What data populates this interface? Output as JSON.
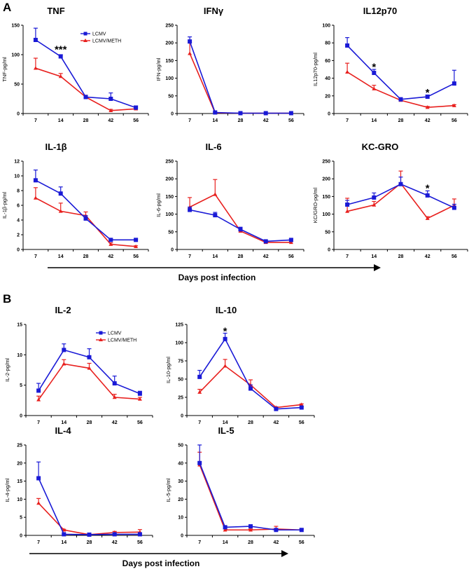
{
  "panel_labels": [
    "A",
    "B"
  ],
  "axis_captions": [
    "Days post infection",
    "Days post infection"
  ],
  "colors": {
    "lcmv": "#1a1ad6",
    "meth": "#e8201e",
    "axis": "#000000"
  },
  "series_names": [
    "LCMV",
    "LCMV/METH"
  ],
  "chart_data": [
    {
      "type": "line",
      "title": "TNF",
      "ylabel": "TNF-pg/ml",
      "ylim": [
        0,
        150
      ],
      "yticks": [
        0,
        50,
        100,
        150
      ],
      "categories": [
        "7",
        "14",
        "28",
        "42",
        "56"
      ],
      "series": [
        {
          "name": "LCMV",
          "values": [
            125,
            97,
            28,
            25,
            10
          ],
          "errors": [
            20,
            3,
            3,
            10,
            3
          ]
        },
        {
          "name": "LCMV/METH",
          "values": [
            77,
            63,
            28,
            5,
            8
          ],
          "errors": [
            17,
            5,
            3,
            2,
            2
          ]
        }
      ],
      "legend": true,
      "annotations": [
        {
          "text": "***",
          "category": "14",
          "value": 108
        }
      ]
    },
    {
      "type": "line",
      "title": "IFNγ",
      "ylabel": "IFN-pg/ml",
      "ylim": [
        0,
        250
      ],
      "yticks": [
        0,
        50,
        100,
        150,
        200,
        250
      ],
      "categories": [
        "7",
        "14",
        "28",
        "42",
        "56"
      ],
      "series": [
        {
          "name": "LCMV",
          "values": [
            204,
            3,
            1,
            1,
            1
          ],
          "errors": [
            13,
            1,
            0,
            0,
            0
          ]
        },
        {
          "name": "LCMV/METH",
          "values": [
            170,
            2,
            1,
            1,
            1
          ],
          "errors": [
            30,
            1,
            0,
            0,
            0
          ]
        }
      ],
      "legend": false,
      "annotations": []
    },
    {
      "type": "line",
      "title": "IL12p70",
      "ylabel": "IL12p70-pg/ml",
      "ylim": [
        0,
        100
      ],
      "yticks": [
        0,
        20,
        40,
        60,
        80,
        100
      ],
      "categories": [
        "7",
        "14",
        "28",
        "42",
        "56"
      ],
      "series": [
        {
          "name": "LCMV",
          "values": [
            77,
            46,
            16,
            19,
            34
          ],
          "errors": [
            9,
            4,
            2,
            2,
            15
          ]
        },
        {
          "name": "LCMV/METH",
          "values": [
            47,
            28,
            15,
            7,
            9
          ],
          "errors": [
            10,
            4,
            1,
            1,
            1
          ]
        }
      ],
      "legend": false,
      "annotations": [
        {
          "text": "*",
          "category": "14",
          "value": 52
        },
        {
          "text": "*",
          "category": "42",
          "value": 23
        }
      ]
    },
    {
      "type": "line",
      "title": "IL-1β",
      "ylabel": "IL-1β-pg/ml",
      "ylim": [
        0,
        12
      ],
      "yticks": [
        0,
        2,
        4,
        6,
        8,
        10,
        12
      ],
      "categories": [
        "7",
        "14",
        "28",
        "42",
        "56"
      ],
      "series": [
        {
          "name": "LCMV",
          "values": [
            9.4,
            7.6,
            4.2,
            1.3,
            1.3
          ],
          "errors": [
            1.4,
            0.9,
            0.4,
            0.1,
            0.1
          ]
        },
        {
          "name": "LCMV/METH",
          "values": [
            7.0,
            5.2,
            4.6,
            0.7,
            0.4
          ],
          "errors": [
            1.4,
            1.1,
            0.5,
            0.2,
            0.1
          ]
        }
      ],
      "legend": false,
      "annotations": []
    },
    {
      "type": "line",
      "title": "IL-6",
      "ylabel": "IL-6-pg/ml",
      "ylim": [
        0,
        250
      ],
      "yticks": [
        0,
        50,
        100,
        150,
        200,
        250
      ],
      "categories": [
        "7",
        "14",
        "28",
        "42",
        "56"
      ],
      "series": [
        {
          "name": "LCMV",
          "values": [
            112,
            97,
            57,
            23,
            27
          ],
          "errors": [
            8,
            8,
            6,
            2,
            3
          ]
        },
        {
          "name": "LCMV/METH",
          "values": [
            120,
            156,
            52,
            20,
            20
          ],
          "errors": [
            27,
            42,
            6,
            2,
            2
          ]
        }
      ],
      "legend": false,
      "annotations": []
    },
    {
      "type": "line",
      "title": "KC-GRO",
      "ylabel": "KC/GRO-pg/ml",
      "ylim": [
        0,
        250
      ],
      "yticks": [
        0,
        50,
        100,
        150,
        200,
        250
      ],
      "categories": [
        "7",
        "14",
        "28",
        "42",
        "56"
      ],
      "series": [
        {
          "name": "LCMV",
          "values": [
            127,
            147,
            185,
            153,
            118
          ],
          "errors": [
            12,
            13,
            20,
            13,
            10
          ]
        },
        {
          "name": "LCMV/METH",
          "values": [
            108,
            126,
            187,
            88,
            125
          ],
          "errors": [
            37,
            10,
            35,
            5,
            18
          ]
        }
      ],
      "legend": false,
      "annotations": [
        {
          "text": "*",
          "category": "42",
          "value": 172
        }
      ]
    },
    {
      "type": "line",
      "title": "IL-2",
      "ylabel": "IL-2-pg/ml",
      "ylim": [
        0,
        15
      ],
      "yticks": [
        0,
        5,
        10,
        15
      ],
      "categories": [
        "7",
        "14",
        "28",
        "42",
        "56"
      ],
      "series": [
        {
          "name": "LCMV",
          "values": [
            4.1,
            10.8,
            9.6,
            5.3,
            3.6
          ],
          "errors": [
            1.2,
            1.0,
            1.4,
            1.2,
            0.4
          ]
        },
        {
          "name": "LCMV/METH",
          "values": [
            2.6,
            8.5,
            7.8,
            3.0,
            2.7
          ],
          "errors": [
            0.6,
            0.7,
            0.8,
            0.5,
            0.3
          ]
        }
      ],
      "legend": true,
      "annotations": []
    },
    {
      "type": "line",
      "title": "IL-10",
      "ylabel": "IL-10-pg/ml",
      "ylim": [
        0,
        125
      ],
      "yticks": [
        0,
        25,
        50,
        75,
        100,
        125
      ],
      "categories": [
        "7",
        "14",
        "28",
        "42",
        "56"
      ],
      "series": [
        {
          "name": "LCMV",
          "values": [
            53,
            105,
            37,
            9,
            11
          ],
          "errors": [
            9,
            8,
            5,
            1,
            1
          ]
        },
        {
          "name": "LCMV/METH",
          "values": [
            32,
            68,
            42,
            11,
            15
          ],
          "errors": [
            4,
            9,
            7,
            1,
            1
          ]
        }
      ],
      "legend": false,
      "annotations": [
        {
          "text": "*",
          "category": "14",
          "value": 115
        }
      ]
    },
    {
      "type": "line",
      "title": "IL-4",
      "ylabel": "IL-4-pg/ml",
      "ylim": [
        0,
        25
      ],
      "yticks": [
        0,
        5,
        10,
        15,
        20,
        25
      ],
      "categories": [
        "7",
        "14",
        "28",
        "42",
        "56"
      ],
      "series": [
        {
          "name": "LCMV",
          "values": [
            15.8,
            0.3,
            0.2,
            0.3,
            0.3
          ],
          "errors": [
            4.5,
            0.1,
            0.1,
            0.1,
            0.1
          ]
        },
        {
          "name": "LCMV/METH",
          "values": [
            8.9,
            1.5,
            0.2,
            0.8,
            0.9
          ],
          "errors": [
            1.3,
            0.2,
            0.1,
            0.3,
            0.7
          ]
        }
      ],
      "legend": false,
      "annotations": []
    },
    {
      "type": "line",
      "title": "IL-5",
      "ylabel": "IL-5-pg/ml",
      "ylim": [
        0,
        50
      ],
      "yticks": [
        0,
        10,
        20,
        30,
        40,
        50
      ],
      "categories": [
        "7",
        "14",
        "28",
        "42",
        "56"
      ],
      "series": [
        {
          "name": "LCMV",
          "values": [
            40,
            4.5,
            5,
            3,
            3
          ],
          "errors": [
            10,
            0.5,
            0.5,
            0.5,
            0.5
          ]
        },
        {
          "name": "LCMV/METH",
          "values": [
            39,
            3,
            3,
            3.5,
            3
          ],
          "errors": [
            7,
            0.5,
            0.5,
            1.5,
            0.5
          ]
        }
      ],
      "legend": false,
      "annotations": []
    }
  ]
}
